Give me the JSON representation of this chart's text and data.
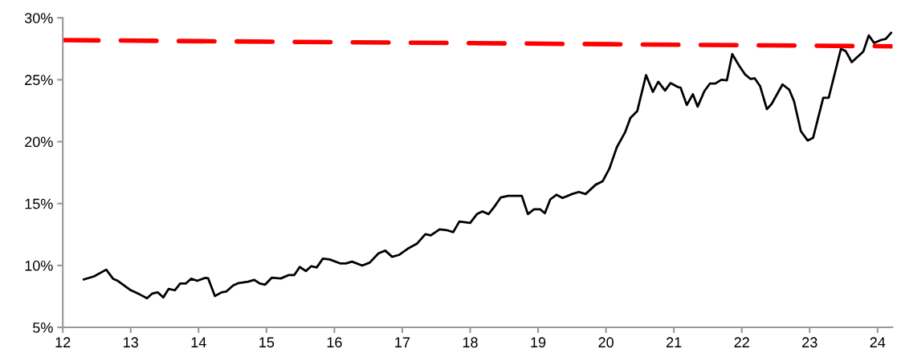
{
  "chart_data": {
    "type": "line",
    "xlim": [
      12,
      24.22
    ],
    "xticks": [
      12,
      13,
      14,
      15,
      16,
      17,
      18,
      19,
      20,
      21,
      22,
      23,
      24
    ],
    "ylim": [
      5,
      30
    ],
    "yticks": [
      {
        "value": 5,
        "label": "5%"
      },
      {
        "value": 10,
        "label": "10%"
      },
      {
        "value": 15,
        "label": "15%"
      },
      {
        "value": 20,
        "label": "20%"
      },
      {
        "value": 25,
        "label": "25%"
      },
      {
        "value": 30,
        "label": "30%"
      }
    ],
    "grid": false,
    "legend": false,
    "series": [
      {
        "color": "#000000",
        "line_style": "solid",
        "x": [
          12.31,
          12.46,
          12.64,
          12.74,
          12.81,
          12.99,
          13.13,
          13.24,
          13.32,
          13.4,
          13.48,
          13.56,
          13.65,
          13.73,
          13.81,
          13.89,
          13.98,
          14.1,
          14.14,
          14.24,
          14.34,
          14.41,
          14.51,
          14.59,
          14.73,
          14.82,
          14.9,
          14.98,
          15.08,
          15.21,
          15.33,
          15.41,
          15.49,
          15.58,
          15.66,
          15.74,
          15.83,
          15.93,
          16.09,
          16.17,
          16.26,
          16.41,
          16.52,
          16.65,
          16.75,
          16.85,
          16.95,
          17.08,
          17.22,
          17.34,
          17.42,
          17.55,
          17.65,
          17.75,
          17.84,
          18.0,
          18.1,
          18.18,
          18.27,
          18.35,
          18.45,
          18.56,
          18.76,
          18.85,
          18.94,
          19.03,
          19.1,
          19.18,
          19.27,
          19.36,
          19.5,
          19.6,
          19.7,
          19.85,
          19.95,
          20.05,
          20.16,
          20.28,
          20.36,
          20.46,
          20.59,
          20.69,
          20.77,
          20.87,
          20.95,
          21.06,
          21.1,
          21.19,
          21.28,
          21.35,
          21.45,
          21.53,
          21.61,
          21.7,
          21.78,
          21.86,
          21.96,
          22.05,
          22.13,
          22.19,
          22.27,
          22.37,
          22.44,
          22.6,
          22.7,
          22.77,
          22.87,
          22.97,
          23.05,
          23.2,
          23.28,
          23.46,
          23.53,
          23.62,
          23.79,
          23.87,
          23.95,
          24.04,
          24.12,
          24.2
        ],
        "values": [
          8.87,
          9.12,
          9.66,
          8.93,
          8.76,
          8.04,
          7.67,
          7.35,
          7.74,
          7.83,
          7.42,
          8.11,
          8.0,
          8.54,
          8.54,
          8.93,
          8.76,
          9.0,
          8.97,
          7.53,
          7.83,
          7.9,
          8.39,
          8.58,
          8.69,
          8.84,
          8.54,
          8.45,
          9.02,
          8.95,
          9.23,
          9.23,
          9.88,
          9.55,
          9.94,
          9.84,
          10.55,
          10.49,
          10.16,
          10.16,
          10.31,
          9.99,
          10.23,
          10.98,
          11.2,
          10.7,
          10.85,
          11.35,
          11.78,
          12.53,
          12.43,
          12.92,
          12.86,
          12.69,
          13.55,
          13.44,
          14.15,
          14.37,
          14.15,
          14.7,
          15.49,
          15.62,
          15.62,
          14.15,
          14.54,
          14.54,
          14.22,
          15.34,
          15.71,
          15.45,
          15.77,
          15.94,
          15.77,
          16.53,
          16.79,
          17.82,
          19.55,
          20.74,
          21.92,
          22.46,
          25.38,
          24.02,
          24.84,
          24.13,
          24.73,
          24.41,
          24.35,
          22.96,
          23.83,
          22.83,
          24.09,
          24.69,
          24.69,
          25.0,
          24.95,
          27.07,
          26.14,
          25.42,
          25.06,
          25.12,
          24.48,
          22.62,
          23.05,
          24.62,
          24.19,
          23.26,
          20.85,
          20.09,
          20.31,
          23.54,
          23.54,
          27.49,
          27.32,
          26.42,
          27.28,
          28.58,
          27.97,
          28.19,
          28.3,
          28.79
        ]
      },
      {
        "color": "#ff0000",
        "line_style": "dashed",
        "x": [
          12,
          24.22
        ],
        "values": [
          28.2,
          27.7
        ]
      }
    ]
  }
}
